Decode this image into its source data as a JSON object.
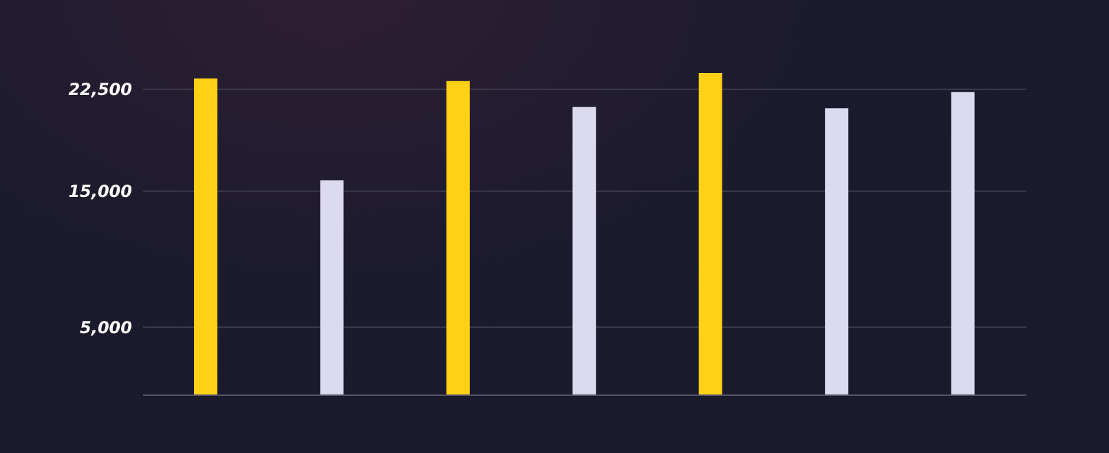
{
  "chart_data": {
    "type": "bar",
    "categories": [
      null,
      null,
      null,
      null,
      null,
      null,
      null
    ],
    "values": [
      23300,
      15800,
      23100,
      21200,
      23700,
      21100,
      22300
    ],
    "colors": [
      "#ffd014",
      "#dcdaf0",
      "#ffd014",
      "#dcdaf0",
      "#ffd014",
      "#dcdaf0",
      "#dcdaf0"
    ],
    "ylim": [
      0,
      23700
    ],
    "yticks": [
      {
        "value": 5000,
        "label": "5,000"
      },
      {
        "value": 15000,
        "label": "15,000"
      },
      {
        "value": 22500,
        "label": "22,500"
      }
    ],
    "grid": "y",
    "tick_labels": "y"
  }
}
